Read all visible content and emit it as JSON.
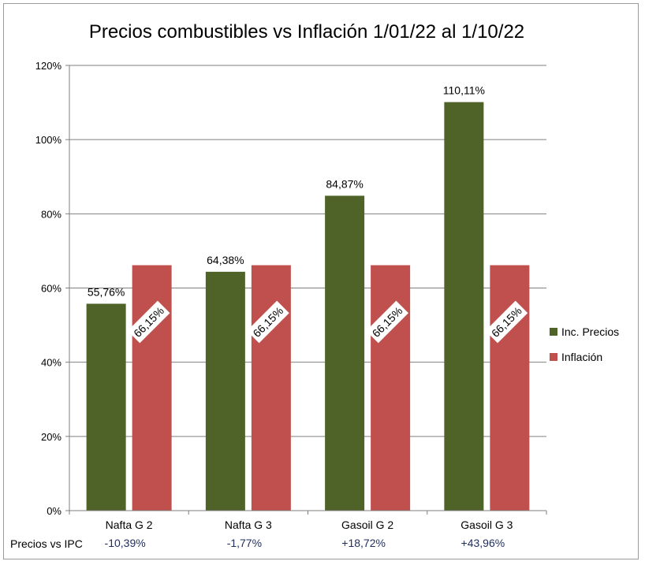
{
  "chart_data": {
    "type": "bar",
    "title": "Precios combustibles vs Inflación 1/01/22 al 1/10/22",
    "categories": [
      "Nafta G 2",
      "Nafta G 3",
      "Gasoil G 2",
      "Gasoil G 3"
    ],
    "series": [
      {
        "name": "Inc. Precios",
        "color": "#4f6228",
        "values": [
          55.76,
          64.38,
          84.87,
          110.11
        ],
        "labels": [
          "55,76%",
          "64,38%",
          "84,87%",
          "110,11%"
        ]
      },
      {
        "name": "Inflación",
        "color": "#c0504d",
        "values": [
          66.15,
          66.15,
          66.15,
          66.15
        ],
        "labels": [
          "66,15%",
          "66,15%",
          "66,15%",
          "66,15%"
        ]
      }
    ],
    "ylim": [
      0,
      120
    ],
    "yticks": [
      "0%",
      "20%",
      "40%",
      "60%",
      "80%",
      "100%",
      "120%"
    ],
    "grid": true,
    "legend_position": "right",
    "footer": {
      "label": "Precios vs  IPC",
      "values": [
        "-10,39%",
        "-1,77%",
        "+18,72%",
        "+43,96%"
      ]
    }
  }
}
